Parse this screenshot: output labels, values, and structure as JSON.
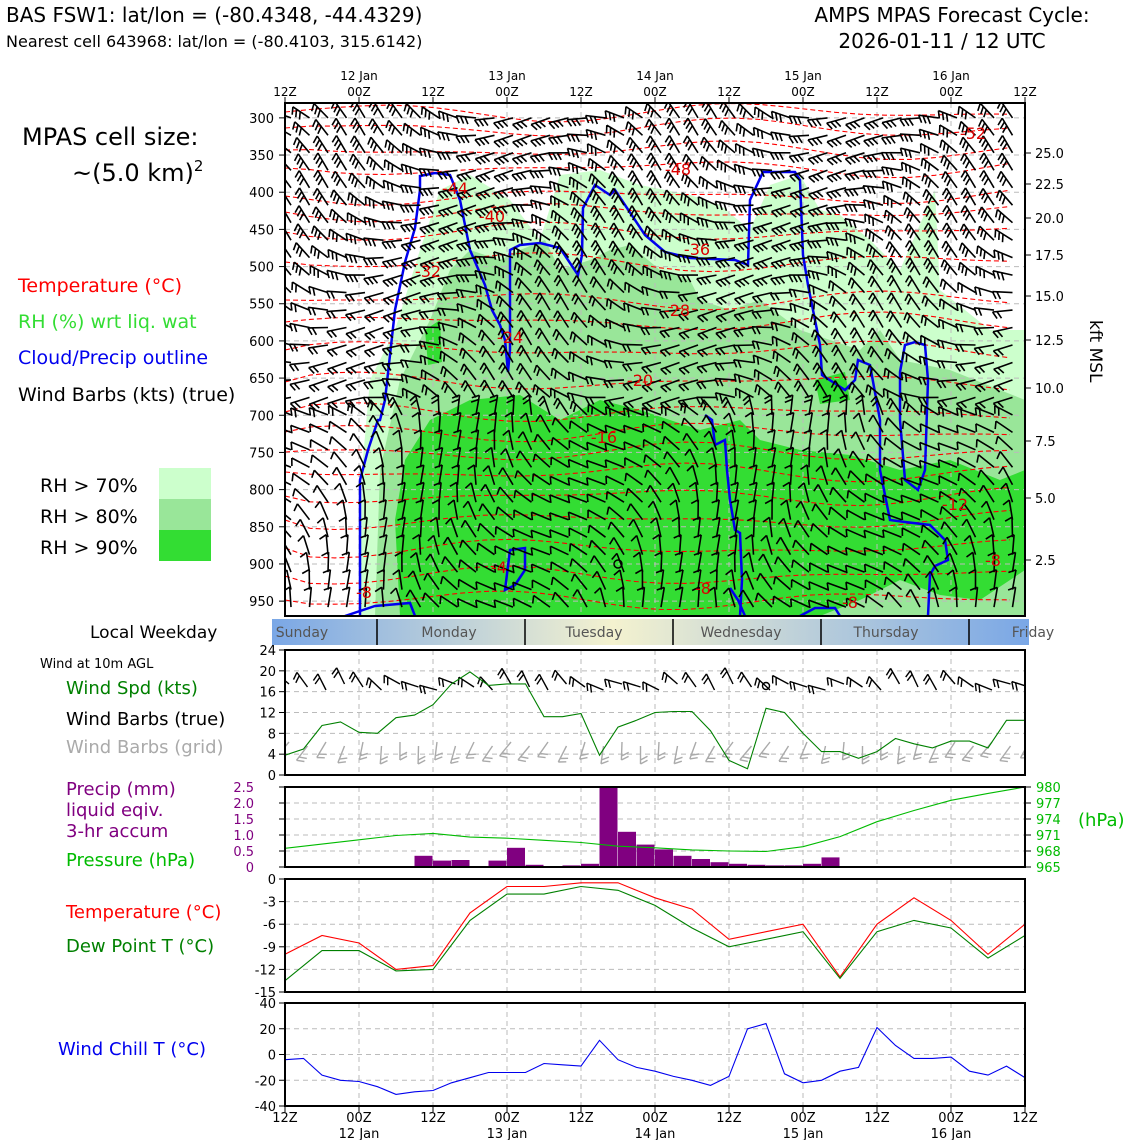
{
  "header": {
    "left_title": "BAS FSW1: lat/lon = (-80.4348, -44.4329)",
    "left_subtitle": "Nearest cell 643968: lat/lon = (-80.4103, 315.6142)",
    "right_title_1": "AMPS MPAS Forecast Cycle:",
    "right_title_2": "2026-01-11 / 12 UTC"
  },
  "legend_main": {
    "cell_size_1": "MPAS cell size:",
    "cell_size_2": "~(5.0 km)",
    "cell_size_sup": "2",
    "temperature": "Temperature (°C)",
    "rh": "RH (%) wrt liq. wat",
    "cloud": "Cloud/Precip outline",
    "wind": "Wind Barbs (kts) (true)",
    "rh70": "RH > 70%",
    "rh80": "RH > 80%",
    "rh90": "RH > 90%"
  },
  "colors": {
    "temperature": "#ff0000",
    "rh70": "#ccffcc",
    "rh80": "#99e699",
    "rh90": "#33dd33",
    "cloud": "#0000ee",
    "precip": "#800080",
    "pressure": "#00bb00",
    "windspd": "#008000",
    "dewpoint": "#008000",
    "windchill": "#0000ee",
    "grid_barbs": "#aaaaaa"
  },
  "time_axis": {
    "ticks": [
      "12Z",
      "00Z",
      "12Z",
      "00Z",
      "12Z",
      "00Z",
      "12Z",
      "00Z",
      "12Z",
      "00Z",
      "12Z"
    ],
    "dates": [
      "",
      "12 Jan",
      "",
      "13 Jan",
      "",
      "14 Jan",
      "",
      "15 Jan",
      "",
      "16 Jan",
      ""
    ]
  },
  "weekday": {
    "label": "Local Weekday",
    "days": [
      "Sunday",
      "Monday",
      "Tuesday",
      "Wednesday",
      "Thursday",
      "Friday"
    ]
  },
  "wind10_label": "Wind at 10m AGL",
  "panel_labels": {
    "windspd": "Wind Spd (kts)",
    "barbs_true": "Wind Barbs (true)",
    "barbs_grid": "Wind Barbs (grid)",
    "precip_1": "Precip (mm)",
    "precip_2": "liquid eqiv.",
    "precip_3": "3-hr accum",
    "pressure": "Pressure (hPa)",
    "pressure_unit": "(hPa)",
    "temperature": "Temperature (°C)",
    "dewpoint": "Dew Point T (°C)",
    "windchill": "Wind Chill T (°C)",
    "kft": "kft MSL"
  },
  "chart_data": [
    {
      "type": "heatmap",
      "name": "time-height cross section",
      "x": "forecast hours 0-60 (3-hourly)",
      "y_pressure_ticks": [
        "300",
        "350",
        "400",
        "450",
        "500",
        "550",
        "600",
        "650",
        "700",
        "750",
        "800",
        "850",
        "900",
        "950"
      ],
      "ylim": [
        970,
        280
      ],
      "y_height_ticks": [
        "25.0",
        "22.5",
        "20.0",
        "17.5",
        "15.0",
        "12.5",
        "10.0",
        "7.5",
        "5.0",
        "2.5"
      ],
      "temperature_labels": [
        "-52",
        "-48",
        "-44",
        "-40",
        "-36",
        "-32",
        "-28",
        "-24",
        "-20",
        "-16",
        "-12",
        "-8",
        "-8",
        "-8",
        "-8",
        "-4"
      ],
      "rh_thresholds": [
        70,
        80,
        90
      ]
    },
    {
      "type": "line",
      "name": "10m wind speed",
      "x_hours": [
        0,
        3,
        6,
        9,
        12,
        15,
        18,
        21,
        24,
        27,
        30,
        33,
        36,
        39,
        42,
        45,
        48,
        51,
        54,
        57,
        60,
        63,
        66,
        69,
        72,
        75,
        78,
        81,
        84,
        87,
        90,
        93,
        96,
        99,
        102,
        105,
        108,
        111,
        114,
        117,
        120
      ],
      "values": [
        3.8,
        5,
        9.5,
        10.2,
        8.2,
        8,
        11,
        11.5,
        13.5,
        17.5,
        19.8,
        17.2,
        17.5,
        17.5,
        11.2,
        11.2,
        11.8,
        3.8,
        9.2,
        10.5,
        12,
        12.2,
        12.2,
        8.5,
        2.8,
        1.2,
        12.8,
        12,
        8,
        4.5,
        4.5,
        3.2,
        4.5,
        7,
        6,
        5.2,
        6.5,
        6.5,
        5.2,
        10.5,
        10.5
      ],
      "ylim": [
        0,
        24
      ],
      "yticks": [
        "0",
        "4",
        "8",
        "12",
        "16",
        "20",
        "24"
      ]
    },
    {
      "type": "bar",
      "name": "3-hr precipitation",
      "x_hours": [
        21,
        24,
        27,
        30,
        33,
        36,
        39,
        42,
        45,
        48,
        51,
        54,
        57,
        60,
        63,
        66,
        69,
        72,
        75,
        78,
        81,
        84,
        87,
        90
      ],
      "values": [
        0.35,
        0.2,
        0.22,
        0.02,
        0.2,
        0.6,
        0.07,
        0.03,
        0.05,
        0.1,
        2.5,
        1.1,
        0.7,
        0.55,
        0.35,
        0.25,
        0.15,
        0.1,
        0.07,
        0.05,
        0.05,
        0.1,
        0.3,
        0.02
      ],
      "ylim": [
        0,
        2.5
      ],
      "yticks": [
        "0",
        "0.5",
        "1.0",
        "1.5",
        "2.0",
        "2.5"
      ]
    },
    {
      "type": "line",
      "name": "surface pressure",
      "x_hours": [
        0,
        6,
        12,
        18,
        24,
        30,
        36,
        42,
        48,
        54,
        60,
        66,
        72,
        78,
        84,
        90,
        96,
        102,
        108,
        114,
        120
      ],
      "values": [
        968.5,
        969.3,
        970.1,
        970.9,
        971.3,
        970.6,
        970.4,
        970.0,
        969.6,
        968.9,
        968.6,
        968.2,
        968.0,
        967.9,
        968.8,
        970.7,
        973.5,
        975.6,
        977.5,
        978.8,
        980.0
      ],
      "ylim": [
        965,
        980
      ],
      "yticks": [
        "980",
        "977",
        "974",
        "971",
        "968",
        "965"
      ]
    },
    {
      "type": "line",
      "name": "temperature and dew point",
      "x_hours": [
        0,
        6,
        12,
        18,
        24,
        30,
        36,
        42,
        48,
        54,
        60,
        66,
        72,
        78,
        84,
        90,
        96,
        102,
        108,
        114,
        120
      ],
      "series": [
        {
          "name": "Temperature (°C)",
          "values": [
            -10,
            -7.5,
            -8.5,
            -12,
            -11.5,
            -4.5,
            -1,
            -1,
            -0.5,
            -0.5,
            -2.5,
            -4,
            -8,
            -7,
            -6,
            -13,
            -6,
            -2.5,
            -5.5,
            -10,
            -6
          ]
        },
        {
          "name": "Dew Point T (°C)",
          "values": [
            -13.5,
            -9.5,
            -9.5,
            -12.2,
            -12,
            -5.5,
            -2,
            -2,
            -1,
            -1.5,
            -3.5,
            -6.5,
            -9,
            -8,
            -7,
            -13.2,
            -7,
            -5.5,
            -6.5,
            -10.5,
            -7.5
          ]
        }
      ],
      "ylim": [
        -15,
        0
      ],
      "yticks": [
        "0",
        "-3",
        "-6",
        "-9",
        "-12",
        "-15"
      ]
    },
    {
      "type": "line",
      "name": "wind chill",
      "x_hours": [
        0,
        3,
        6,
        9,
        12,
        15,
        18,
        21,
        24,
        27,
        30,
        33,
        36,
        39,
        42,
        45,
        48,
        51,
        54,
        57,
        60,
        63,
        66,
        69,
        72,
        75,
        78,
        81,
        84,
        87,
        90,
        93,
        96,
        99,
        102,
        105,
        108,
        111,
        114,
        117,
        120
      ],
      "values": [
        -4,
        -3,
        -16,
        -20,
        -21,
        -25,
        -31,
        -29,
        -28,
        -22,
        -18,
        -14,
        -14,
        -14,
        -7,
        -8,
        -9,
        11,
        -4,
        -10,
        -13,
        -17,
        -20,
        -24,
        -17,
        20,
        24,
        -15,
        -22,
        -20,
        -13,
        -10,
        21,
        7,
        -3,
        -3,
        -2,
        -13,
        -16,
        -9,
        -18
      ],
      "ylim": [
        -40,
        40
      ],
      "yticks": [
        "40",
        "20",
        "0",
        "-20",
        "-40"
      ]
    }
  ]
}
